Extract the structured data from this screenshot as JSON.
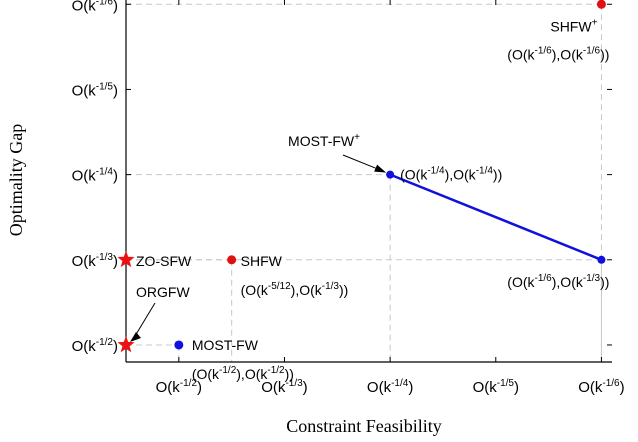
{
  "chart_data": {
    "type": "scatter",
    "xlabel": "Constraint Feasibility",
    "ylabel": "Optimality Gap",
    "x_ticks": [
      {
        "value": 1,
        "label": "O(k^{-1/2})"
      },
      {
        "value": 2,
        "label": "O(k^{-1/3})"
      },
      {
        "value": 3,
        "label": "O(k^{-1/4})"
      },
      {
        "value": 4,
        "label": "O(k^{-1/5})"
      },
      {
        "value": 5,
        "label": "O(k^{-1/6})"
      }
    ],
    "y_ticks": [
      {
        "value": 1,
        "label": "O(k^{-1/2})"
      },
      {
        "value": 2,
        "label": "O(k^{-1/3})"
      },
      {
        "value": 3,
        "label": "O(k^{-1/4})"
      },
      {
        "value": 4,
        "label": "O(k^{-1/5})"
      },
      {
        "value": 5,
        "label": "O(k^{-1/6})"
      }
    ],
    "xlim": [
      0.5,
      5.1
    ],
    "ylim": [
      0.8,
      5.05
    ],
    "grid": false,
    "points": [
      {
        "name": "ZO-SFW",
        "x": 0.5,
        "y": 2,
        "marker": "star",
        "color": "#ee1111",
        "rate": ""
      },
      {
        "name": "ORGFW",
        "x": 0.5,
        "y": 1,
        "marker": "star",
        "color": "#ee1111",
        "rate": ""
      },
      {
        "name": "SHFW",
        "x": 1.5,
        "y": 2,
        "marker": "dot",
        "color": "#dd1111",
        "rate": "(O(k^{-5/12}),O(k^{-1/3}))"
      },
      {
        "name": "MOST-FW",
        "x": 1.0,
        "y": 1,
        "marker": "dot",
        "color": "#1111dd",
        "rate": "(O(k^{-1/2}),O(k^{-1/2}))"
      },
      {
        "name": "SHFW^{+}",
        "x": 5.0,
        "y": 5,
        "marker": "dot",
        "color": "#dd1111",
        "rate": "(O(k^{-1/6}),O(k^{-1/6}))"
      }
    ],
    "segment": {
      "color": "#1111dd",
      "name": "MOST-FW^{+}",
      "points": [
        {
          "x": 3,
          "y": 3,
          "rate": "(O(k^{-1/4}),O(k^{-1/4}))"
        },
        {
          "x": 5,
          "y": 2,
          "rate": "(O(k^{-1/6}),O(k^{-1/3}))"
        }
      ]
    }
  }
}
